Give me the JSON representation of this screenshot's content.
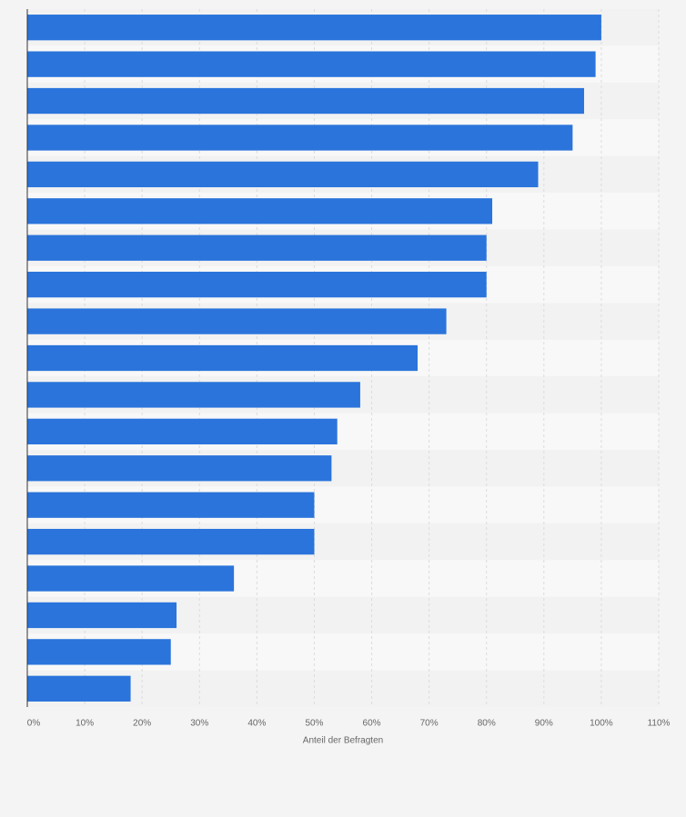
{
  "chart_data": {
    "type": "bar",
    "orientation": "horizontal",
    "x_label": "Anteil der Befragten",
    "categories": [
      null,
      null,
      null,
      null,
      null,
      null,
      null,
      null,
      null,
      null,
      null,
      null,
      null,
      null,
      null,
      null,
      null,
      null,
      null
    ],
    "values": [
      100,
      99,
      97,
      95,
      89,
      81,
      80,
      80,
      73,
      68,
      58,
      54,
      53,
      50,
      50,
      36,
      26,
      25,
      18
    ],
    "color": "#2a74db",
    "xlim": [
      0,
      110
    ],
    "xticks": [
      {
        "value": 0,
        "label": "0%"
      },
      {
        "value": 10,
        "label": "10%"
      },
      {
        "value": 20,
        "label": "20%"
      },
      {
        "value": 30,
        "label": "30%"
      },
      {
        "value": 40,
        "label": "40%"
      },
      {
        "value": 50,
        "label": "50%"
      },
      {
        "value": 60,
        "label": "60%"
      },
      {
        "value": 70,
        "label": "70%"
      },
      {
        "value": 80,
        "label": "80%"
      },
      {
        "value": 90,
        "label": "90%"
      },
      {
        "value": 100,
        "label": "100%"
      },
      {
        "value": 110,
        "label": "110%"
      }
    ],
    "grid": true
  }
}
